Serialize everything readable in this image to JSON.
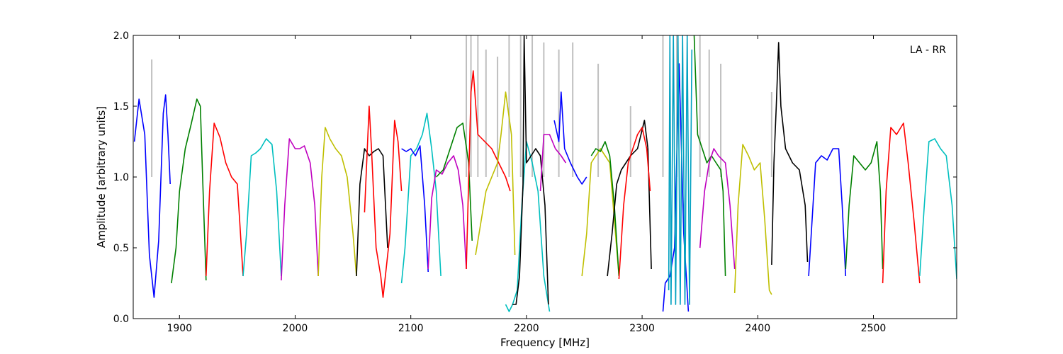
{
  "chart_data": {
    "type": "line",
    "title": "",
    "annotation": "LA - RR",
    "xlabel": "Frequency [MHz]",
    "ylabel": "Amplitude [arbitrary units]",
    "xlim": [
      1860,
      2572
    ],
    "ylim": [
      0.0,
      2.0
    ],
    "xticks": [
      1900,
      2000,
      2100,
      2200,
      2300,
      2400,
      2500
    ],
    "xtick_labels": [
      "1900",
      "2000",
      "2100",
      "2200",
      "2300",
      "2400",
      "2500"
    ],
    "yticks": [
      0.0,
      0.5,
      1.0,
      1.5,
      2.0
    ],
    "ytick_labels": [
      "0.0",
      "0.5",
      "1.0",
      "1.5",
      "2.0"
    ],
    "grid": false,
    "background_series": {
      "color": "#bfbfbf",
      "spikes": [
        [
          1876,
          1.83
        ],
        [
          2148,
          2.0
        ],
        [
          2152,
          2.0
        ],
        [
          2158,
          2.0
        ],
        [
          2165,
          1.9
        ],
        [
          2175,
          1.85
        ],
        [
          2185,
          2.0
        ],
        [
          2195,
          2.0
        ],
        [
          2205,
          2.0
        ],
        [
          2215,
          1.95
        ],
        [
          2228,
          1.9
        ],
        [
          2240,
          1.95
        ],
        [
          2262,
          1.8
        ],
        [
          2290,
          1.5
        ],
        [
          2318,
          2.0
        ],
        [
          2330,
          2.0
        ],
        [
          2350,
          2.0
        ],
        [
          2358,
          1.9
        ],
        [
          2368,
          1.8
        ],
        [
          2412,
          1.6
        ]
      ]
    },
    "series": [
      {
        "color": "#0000ff",
        "x": [
          1861,
          1865,
          1870,
          1874,
          1878,
          1882,
          1886,
          1888,
          1890,
          1892
        ],
        "y": [
          1.25,
          1.55,
          1.3,
          0.45,
          0.15,
          0.55,
          1.45,
          1.58,
          1.3,
          0.95
        ]
      },
      {
        "color": "#008000",
        "x": [
          1893,
          1897,
          1900,
          1905,
          1910,
          1915,
          1918,
          1920,
          1923
        ],
        "y": [
          0.25,
          0.5,
          0.9,
          1.2,
          1.37,
          1.55,
          1.5,
          1.0,
          0.27
        ]
      },
      {
        "color": "#ff0000",
        "x": [
          1923,
          1926,
          1930,
          1935,
          1940,
          1945,
          1950,
          1952,
          1955
        ],
        "y": [
          0.3,
          0.9,
          1.38,
          1.28,
          1.1,
          1.0,
          0.95,
          0.7,
          0.3
        ]
      },
      {
        "color": "#00bfbf",
        "x": [
          1955,
          1958,
          1962,
          1966,
          1970,
          1975,
          1980,
          1984,
          1988
        ],
        "y": [
          0.3,
          0.6,
          1.15,
          1.17,
          1.2,
          1.27,
          1.23,
          0.9,
          0.3
        ]
      },
      {
        "color": "#bf00bf",
        "x": [
          1988,
          1991,
          1995,
          2000,
          2004,
          2008,
          2013,
          2017,
          2020
        ],
        "y": [
          0.27,
          0.8,
          1.27,
          1.2,
          1.2,
          1.22,
          1.1,
          0.8,
          0.3
        ]
      },
      {
        "color": "#bfbf00",
        "x": [
          2020,
          2023,
          2026,
          2030,
          2035,
          2040,
          2045,
          2050,
          2053
        ],
        "y": [
          0.3,
          1.0,
          1.35,
          1.27,
          1.2,
          1.15,
          1.0,
          0.6,
          0.3
        ]
      },
      {
        "color": "#000000",
        "x": [
          2053,
          2056,
          2060,
          2064,
          2068,
          2072,
          2076,
          2080
        ],
        "y": [
          0.3,
          0.95,
          1.2,
          1.15,
          1.18,
          1.2,
          1.15,
          0.5
        ]
      },
      {
        "color": "#ff0000",
        "x": [
          2060,
          2064,
          2066,
          2070,
          2074,
          2076,
          2078,
          2082,
          2086,
          2089,
          2092
        ],
        "y": [
          0.75,
          1.5,
          1.2,
          0.5,
          0.3,
          0.15,
          0.3,
          0.6,
          1.4,
          1.25,
          0.9
        ]
      },
      {
        "color": "#00bfbf",
        "x": [
          2092,
          2095,
          2100,
          2105,
          2110,
          2114,
          2118,
          2122,
          2126
        ],
        "y": [
          0.25,
          0.5,
          1.15,
          1.2,
          1.3,
          1.45,
          1.2,
          0.9,
          0.3
        ]
      },
      {
        "color": "#0000ff",
        "x": [
          2092,
          2096,
          2100,
          2104,
          2108,
          2112,
          2115
        ],
        "y": [
          1.2,
          1.18,
          1.2,
          1.15,
          1.22,
          0.8,
          0.33
        ]
      },
      {
        "color": "#bf00bf",
        "x": [
          2115,
          2118,
          2122,
          2127,
          2132,
          2137,
          2141,
          2145,
          2148
        ],
        "y": [
          0.35,
          0.85,
          1.05,
          1.02,
          1.1,
          1.15,
          1.05,
          0.8,
          0.35
        ]
      },
      {
        "color": "#008000",
        "x": [
          2122,
          2128,
          2134,
          2140,
          2145,
          2150,
          2153
        ],
        "y": [
          1.0,
          1.05,
          1.2,
          1.35,
          1.38,
          1.1,
          0.55
        ]
      },
      {
        "color": "#ff0000",
        "x": [
          2148,
          2152,
          2154,
          2158,
          2164,
          2170,
          2176,
          2182,
          2186
        ],
        "y": [
          0.35,
          1.6,
          1.75,
          1.3,
          1.25,
          1.2,
          1.1,
          1.0,
          0.9
        ]
      },
      {
        "color": "#bfbf00",
        "x": [
          2156,
          2160,
          2165,
          2170,
          2175,
          2178,
          2182,
          2187,
          2190
        ],
        "y": [
          0.45,
          0.65,
          0.9,
          1.0,
          1.1,
          1.3,
          1.6,
          1.3,
          0.45
        ]
      },
      {
        "color": "#00bfbf",
        "x": [
          2182,
          2185,
          2188,
          2192,
          2196,
          2200,
          2205,
          2210,
          2215,
          2220
        ],
        "y": [
          0.1,
          0.05,
          0.1,
          0.2,
          0.8,
          1.25,
          1.1,
          0.9,
          0.3,
          0.05
        ]
      },
      {
        "color": "#000000",
        "x": [
          2188,
          2191,
          2194,
          2197,
          2198,
          2200,
          2204,
          2208,
          2212,
          2216,
          2219
        ],
        "y": [
          0.1,
          0.1,
          0.3,
          0.95,
          2.0,
          1.1,
          1.15,
          1.2,
          1.15,
          0.8,
          0.1
        ]
      },
      {
        "color": "#bf00bf",
        "x": [
          2212,
          2215,
          2220,
          2225,
          2230,
          2234
        ],
        "y": [
          0.9,
          1.3,
          1.3,
          1.2,
          1.15,
          1.1
        ]
      },
      {
        "color": "#0000ff",
        "x": [
          2224,
          2228,
          2230,
          2233,
          2238,
          2244,
          2248,
          2252
        ],
        "y": [
          1.4,
          1.25,
          1.6,
          1.2,
          1.1,
          1.0,
          0.95,
          1.0
        ]
      },
      {
        "color": "#bfbf00",
        "x": [
          2248,
          2252,
          2256,
          2260,
          2264,
          2268,
          2272,
          2276,
          2280
        ],
        "y": [
          0.3,
          0.6,
          1.1,
          1.15,
          1.2,
          1.15,
          1.1,
          0.7,
          0.3
        ]
      },
      {
        "color": "#008000",
        "x": [
          2256,
          2260,
          2264,
          2268,
          2272,
          2276,
          2280
        ],
        "y": [
          1.15,
          1.2,
          1.18,
          1.25,
          1.15,
          0.8,
          0.3
        ]
      },
      {
        "color": "#000000",
        "x": [
          2270,
          2274,
          2278,
          2282,
          2290,
          2296,
          2302,
          2305,
          2308
        ],
        "y": [
          0.3,
          0.6,
          0.95,
          1.05,
          1.15,
          1.2,
          1.4,
          1.2,
          0.35
        ]
      },
      {
        "color": "#ff0000",
        "x": [
          2280,
          2284,
          2288,
          2292,
          2296,
          2300,
          2304,
          2307
        ],
        "y": [
          0.28,
          0.8,
          1.1,
          1.2,
          1.3,
          1.35,
          1.2,
          0.9
        ]
      },
      {
        "color": "#0000ff",
        "x": [
          2318,
          2320,
          2324,
          2328,
          2332,
          2336,
          2340
        ],
        "y": [
          0.05,
          0.25,
          0.3,
          0.5,
          1.8,
          0.6,
          0.05
        ]
      },
      {
        "color": "#00a0c0",
        "x": [
          2323,
          2324,
          2325,
          2327,
          2329,
          2331,
          2333,
          2335,
          2337,
          2339,
          2341,
          2343
        ],
        "y": [
          0.2,
          2.0,
          0.1,
          2.0,
          0.1,
          2.0,
          0.1,
          2.0,
          0.1,
          2.0,
          0.1,
          1.9
        ]
      },
      {
        "color": "#008000",
        "x": [
          2345,
          2348,
          2352,
          2356,
          2360,
          2364,
          2368,
          2370,
          2372
        ],
        "y": [
          2.0,
          1.3,
          1.2,
          1.1,
          1.15,
          1.1,
          1.05,
          0.9,
          0.3
        ]
      },
      {
        "color": "#bf00bf",
        "x": [
          2350,
          2354,
          2358,
          2362,
          2366,
          2372,
          2376,
          2380
        ],
        "y": [
          0.5,
          0.9,
          1.1,
          1.2,
          1.15,
          1.1,
          0.8,
          0.35
        ]
      },
      {
        "color": "#bfbf00",
        "x": [
          2380,
          2383,
          2387,
          2392,
          2397,
          2402,
          2406,
          2410,
          2412
        ],
        "y": [
          0.18,
          0.8,
          1.23,
          1.15,
          1.05,
          1.1,
          0.7,
          0.2,
          0.17
        ]
      },
      {
        "color": "#000000",
        "x": [
          2412,
          2414,
          2416,
          2418,
          2420,
          2424,
          2430,
          2436,
          2441,
          2443
        ],
        "y": [
          0.38,
          1.1,
          1.5,
          1.95,
          1.5,
          1.2,
          1.1,
          1.05,
          0.8,
          0.4
        ]
      },
      {
        "color": "#0000ff",
        "x": [
          2444,
          2447,
          2450,
          2455,
          2460,
          2465,
          2470,
          2473,
          2476
        ],
        "y": [
          0.3,
          0.7,
          1.1,
          1.15,
          1.12,
          1.2,
          1.2,
          0.8,
          0.3
        ]
      },
      {
        "color": "#008000",
        "x": [
          2476,
          2479,
          2483,
          2488,
          2493,
          2498,
          2503,
          2506,
          2508
        ],
        "y": [
          0.35,
          0.8,
          1.15,
          1.1,
          1.05,
          1.1,
          1.25,
          0.9,
          0.35
        ]
      },
      {
        "color": "#ff0000",
        "x": [
          2508,
          2511,
          2515,
          2520,
          2526,
          2530,
          2535,
          2540
        ],
        "y": [
          0.25,
          0.9,
          1.35,
          1.3,
          1.38,
          1.1,
          0.7,
          0.25
        ]
      },
      {
        "color": "#00bfbf",
        "x": [
          2540,
          2544,
          2548,
          2553,
          2558,
          2563,
          2568,
          2572
        ],
        "y": [
          0.3,
          0.8,
          1.25,
          1.27,
          1.2,
          1.15,
          0.8,
          0.28
        ]
      }
    ]
  }
}
